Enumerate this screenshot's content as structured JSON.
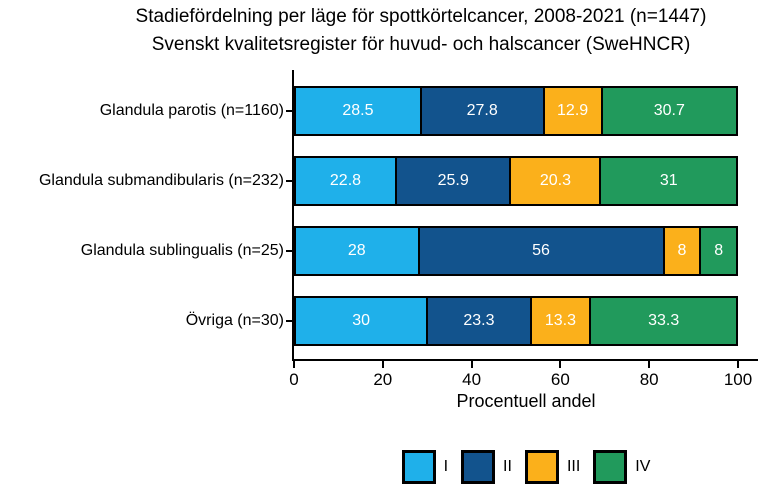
{
  "title": "Stadiefördelning per läge för spottkörtelcancer, 2008-2021 (n=1447)",
  "subtitle": "Svenskt kvalitetsregister för huvud- och halscancer (SweHNCR)",
  "chart_data": {
    "type": "bar",
    "orientation": "horizontal",
    "stacked": true,
    "grid": false,
    "title": "Stadiefördelning per läge för spottkörtelcancer, 2008-2021 (n=1447)",
    "subtitle": "Svenskt kvalitetsregister för huvud- och halscancer (SweHNCR)",
    "categories": [
      "Glandula parotis (n=1160)",
      "Glandula submandibularis (n=232)",
      "Glandula sublingualis (n=25)",
      "Övriga (n=30)"
    ],
    "series": [
      {
        "name": "I",
        "color": "#1FB0EA",
        "values": [
          28.5,
          22.8,
          28,
          30
        ]
      },
      {
        "name": "II",
        "color": "#12538D",
        "values": [
          27.8,
          25.9,
          56,
          23.3
        ]
      },
      {
        "name": "III",
        "color": "#FBB01B",
        "values": [
          12.9,
          20.3,
          8,
          13.3
        ]
      },
      {
        "name": "IV",
        "color": "#219A5C",
        "values": [
          30.7,
          31,
          8,
          33.3
        ]
      }
    ],
    "xlabel": "Procentuell andel",
    "x_ticks": [
      0,
      20,
      40,
      60,
      80,
      100
    ],
    "xlim": [
      0,
      100
    ],
    "legend_position": "bottom",
    "bar_label_color": "#ffffff",
    "axis_color": "#000000"
  }
}
